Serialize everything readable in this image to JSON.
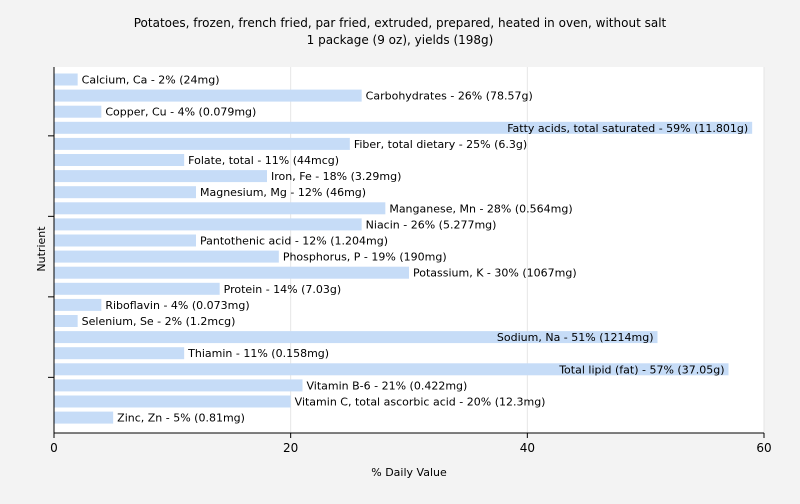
{
  "chart_data": {
    "type": "bar",
    "orientation": "horizontal",
    "title": "Potatoes, frozen, french fried, par fried, extruded, prepared, heated in oven, without salt",
    "subtitle": "1 package (9 oz), yields (198g)",
    "xlabel": "% Daily Value",
    "ylabel": "Nutrient",
    "xlim": [
      0,
      60
    ],
    "xticks": [
      0,
      20,
      40,
      60
    ],
    "grid": true,
    "bar_color": "#c6dcf7",
    "categories": [
      "Calcium, Ca",
      "Carbohydrates",
      "Copper, Cu",
      "Fatty acids, total saturated",
      "Fiber, total dietary",
      "Folate, total",
      "Iron, Fe",
      "Magnesium, Mg",
      "Manganese, Mn",
      "Niacin",
      "Pantothenic acid",
      "Phosphorus, P",
      "Potassium, K",
      "Protein",
      "Riboflavin",
      "Selenium, Se",
      "Sodium, Na",
      "Thiamin",
      "Total lipid (fat)",
      "Vitamin B-6",
      "Vitamin C, total ascorbic acid",
      "Zinc, Zn"
    ],
    "values": [
      2,
      26,
      4,
      59,
      25,
      11,
      18,
      12,
      28,
      26,
      12,
      19,
      30,
      14,
      4,
      2,
      51,
      11,
      57,
      21,
      20,
      5
    ],
    "labels": [
      "Calcium, Ca - 2% (24mg)",
      "Carbohydrates - 26% (78.57g)",
      "Copper, Cu - 4% (0.079mg)",
      "Fatty acids, total saturated - 59% (11.801g)",
      "Fiber, total dietary - 25% (6.3g)",
      "Folate, total - 11% (44mcg)",
      "Iron, Fe - 18% (3.29mg)",
      "Magnesium, Mg - 12% (46mg)",
      "Manganese, Mn - 28% (0.564mg)",
      "Niacin - 26% (5.277mg)",
      "Pantothenic acid - 12% (1.204mg)",
      "Phosphorus, P - 19% (190mg)",
      "Potassium, K - 30% (1067mg)",
      "Protein - 14% (7.03g)",
      "Riboflavin - 4% (0.073mg)",
      "Selenium, Se - 2% (1.2mcg)",
      "Sodium, Na - 51% (1214mg)",
      "Thiamin - 11% (0.158mg)",
      "Total lipid (fat) - 57% (37.05g)",
      "Vitamin B-6 - 21% (0.422mg)",
      "Vitamin C, total ascorbic acid - 20% (12.3mg)",
      "Zinc, Zn - 5% (0.81mg)"
    ]
  }
}
